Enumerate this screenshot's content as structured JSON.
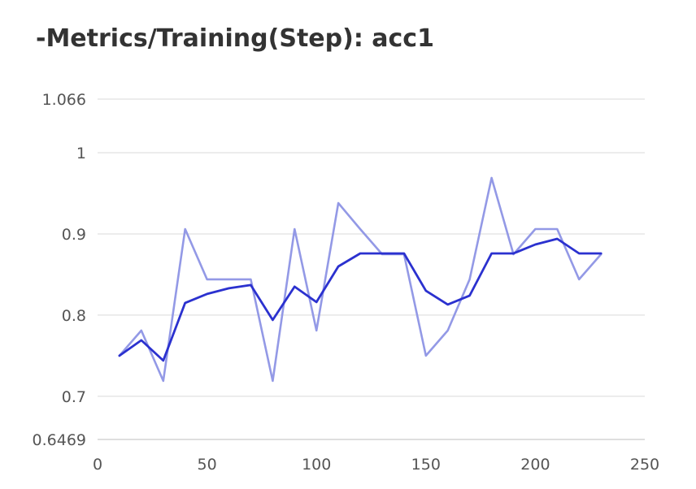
{
  "title": "-Metrics/Training(Step): acc1",
  "chart_data": {
    "type": "line",
    "title": "-Metrics/Training(Step): acc1",
    "xlabel": "",
    "ylabel": "",
    "xlim": [
      0,
      250
    ],
    "ylim": [
      0.6469,
      1.066
    ],
    "x_ticks": [
      "0",
      "50",
      "100",
      "150",
      "200",
      "250"
    ],
    "y_ticks": [
      "1.066",
      "1",
      "0.9",
      "0.8",
      "0.7",
      "0.6469"
    ],
    "grid": true,
    "x": [
      10,
      20,
      30,
      40,
      50,
      60,
      70,
      80,
      90,
      100,
      110,
      120,
      130,
      140,
      150,
      160,
      170,
      180,
      190,
      200,
      210,
      220,
      230
    ],
    "series": [
      {
        "color": "#9399e6",
        "values": [
          0.75,
          0.781,
          0.719,
          0.906,
          0.844,
          0.844,
          0.844,
          0.719,
          0.906,
          0.781,
          0.938,
          0.906,
          0.875,
          0.875,
          0.75,
          0.781,
          0.844,
          0.969,
          0.875,
          0.906,
          0.906,
          0.844,
          0.875
        ]
      },
      {
        "color": "#2b31cf",
        "values": [
          0.75,
          0.769,
          0.744,
          0.815,
          0.826,
          0.833,
          0.837,
          0.794,
          0.835,
          0.816,
          0.86,
          0.876,
          0.876,
          0.876,
          0.83,
          0.813,
          0.824,
          0.876,
          0.876,
          0.887,
          0.894,
          0.876,
          0.876
        ]
      }
    ]
  }
}
